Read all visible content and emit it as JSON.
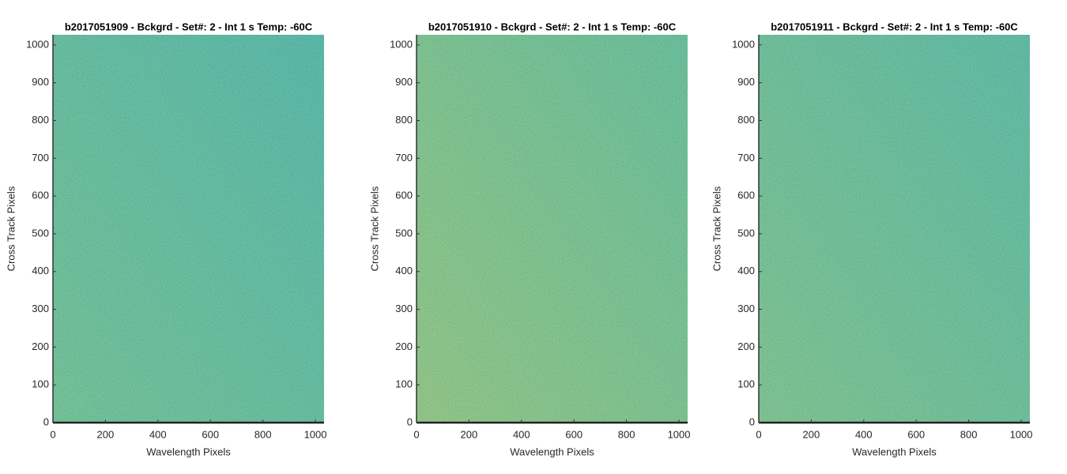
{
  "chart_data": [
    {
      "type": "heatmap",
      "title": "b2017051909 - Bckgrd - Set#: 2 - Int 1 s Temp: -60C",
      "xlabel": "Wavelength Pixels",
      "ylabel": "Cross Track Pixels",
      "xlim": [
        0,
        1033
      ],
      "ylim": [
        0,
        1027
      ],
      "xticks": [
        0,
        200,
        400,
        600,
        800,
        1000
      ],
      "yticks": [
        0,
        100,
        200,
        300,
        400,
        500,
        600,
        700,
        800,
        900,
        1000
      ],
      "colors": [
        "#4cb79a",
        "#25a9b2"
      ]
    },
    {
      "type": "heatmap",
      "title": "b2017051910 - Bckgrd - Set#: 2 - Int 1 s Temp: -60C",
      "xlabel": "Wavelength Pixels",
      "ylabel": "Cross Track Pixels",
      "xlim": [
        0,
        1033
      ],
      "ylim": [
        0,
        1027
      ],
      "xticks": [
        0,
        200,
        400,
        600,
        800,
        1000
      ],
      "yticks": [
        0,
        100,
        200,
        300,
        400,
        500,
        600,
        700,
        800,
        900,
        1000
      ],
      "colors": [
        "#78bd80",
        "#3db29f"
      ]
    },
    {
      "type": "heatmap",
      "title": "b2017051911 - Bckgrd - Set#: 2 - Int 1 s Temp: -60C",
      "xlabel": "Wavelength Pixels",
      "ylabel": "Cross Track Pixels",
      "xlim": [
        0,
        1033
      ],
      "ylim": [
        0,
        1027
      ],
      "xticks": [
        0,
        200,
        400,
        600,
        800,
        1000
      ],
      "yticks": [
        0,
        100,
        200,
        300,
        400,
        500,
        600,
        700,
        800,
        900,
        1000
      ],
      "colors": [
        "#5cb990",
        "#2eacac"
      ]
    }
  ]
}
